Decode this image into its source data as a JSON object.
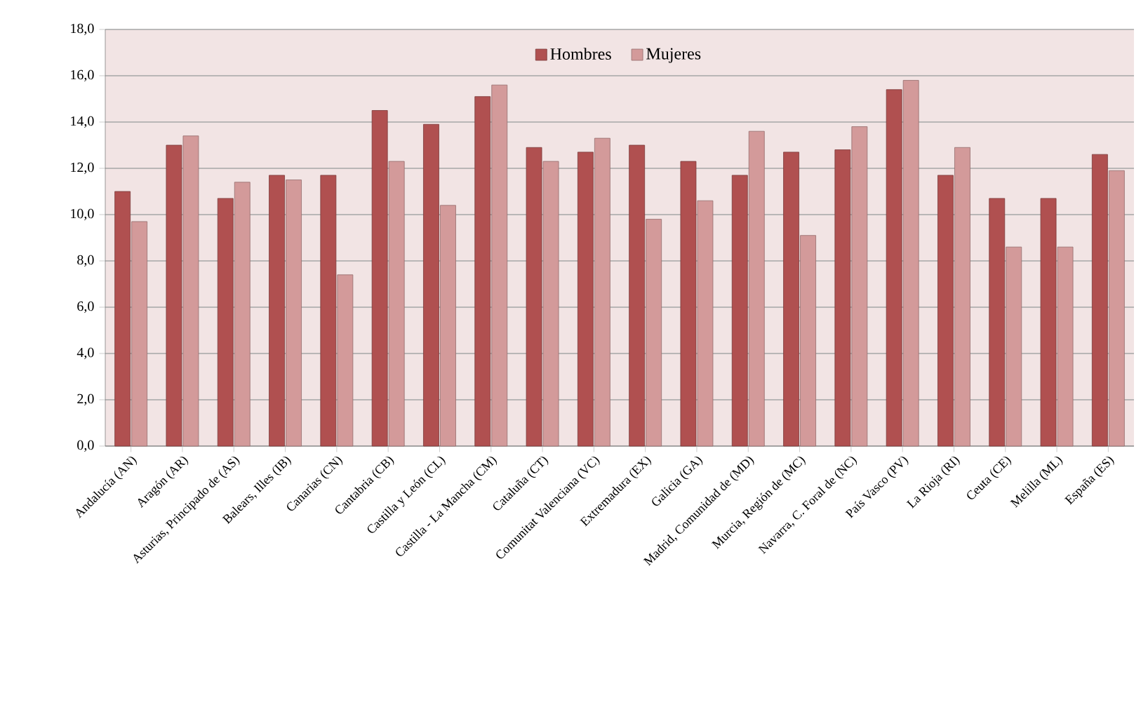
{
  "chart_data": {
    "type": "bar",
    "categories": [
      "Andalucía (AN)",
      "Aragón (AR)",
      "Asturias, Principado de (AS)",
      "Balears, Illes (IB)",
      "Canarias (CN)",
      "Cantabria (CB)",
      "Castilla y León (CL)",
      "Castilla - La Mancha (CM)",
      "Cataluña (CT)",
      "Comunitat Valenciana (VC)",
      "Extremadura (EX)",
      "Galicia (GA)",
      "Madrid, Comunidad de (MD)",
      "Murcia, Región de (MC)",
      "Navarra, C. Foral de (NC)",
      "País Vasco (PV)",
      "La Rioja (RI)",
      "Ceuta (CE)",
      "Melilla (ML)",
      "España (ES)"
    ],
    "series": [
      {
        "name": "Hombres",
        "color": "#b05050",
        "values": [
          11.0,
          13.0,
          10.7,
          11.7,
          11.7,
          14.5,
          13.9,
          15.1,
          12.9,
          12.7,
          13.0,
          12.3,
          11.7,
          12.7,
          12.8,
          15.4,
          11.7,
          10.7,
          10.7,
          12.6
        ]
      },
      {
        "name": "Mujeres",
        "color": "#d39a9a",
        "values": [
          9.7,
          13.4,
          11.4,
          11.5,
          7.4,
          12.3,
          10.4,
          15.6,
          12.3,
          13.3,
          9.8,
          10.6,
          13.6,
          9.1,
          13.8,
          15.8,
          12.9,
          8.6,
          8.6,
          11.9
        ]
      }
    ],
    "ylim": [
      0,
      18
    ],
    "yticks": [
      {
        "value": 0,
        "label": "0,0"
      },
      {
        "value": 2,
        "label": "2,0"
      },
      {
        "value": 4,
        "label": "4,0"
      },
      {
        "value": 6,
        "label": "6,0"
      },
      {
        "value": 8,
        "label": "8,0"
      },
      {
        "value": 10,
        "label": "10,0"
      },
      {
        "value": 12,
        "label": "12,0"
      },
      {
        "value": 14,
        "label": "14,0"
      },
      {
        "value": 16,
        "label": "16,0"
      },
      {
        "value": 18,
        "label": "18,0"
      }
    ],
    "grid": "y",
    "legend": "top"
  }
}
